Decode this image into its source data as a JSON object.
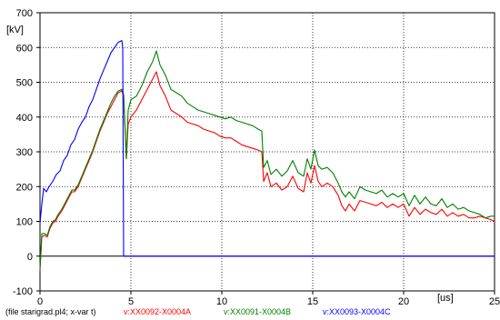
{
  "chart_data": {
    "type": "line",
    "ylabel": "[kV]",
    "xlabel": "[us]",
    "xlim": [
      0,
      25
    ],
    "ylim": [
      -100,
      700
    ],
    "x_ticks": [
      0,
      5,
      10,
      15,
      20,
      25
    ],
    "y_ticks": [
      -100,
      0,
      100,
      200,
      300,
      400,
      500,
      600,
      700
    ],
    "grid": true,
    "caption": "(file starigrad.pl4; x-var t)",
    "series": [
      {
        "name": "v:XX0092-X0004A",
        "color": "#ff0000",
        "x": [
          0,
          0.1,
          0.25,
          0.4,
          0.55,
          0.7,
          0.85,
          1.0,
          1.2,
          1.4,
          1.6,
          1.75,
          1.9,
          2.1,
          2.3,
          2.5,
          2.7,
          2.9,
          3.1,
          3.3,
          3.5,
          3.7,
          3.9,
          4.1,
          4.3,
          4.5,
          4.6,
          4.75,
          4.85,
          5.0,
          5.3,
          5.6,
          5.9,
          6.2,
          6.4,
          6.6,
          6.9,
          7.2,
          7.5,
          7.8,
          8.1,
          8.4,
          8.7,
          9.0,
          9.3,
          9.6,
          9.9,
          10.2,
          10.5,
          10.8,
          11.1,
          11.4,
          11.7,
          12.0,
          12.2,
          12.3,
          12.5,
          12.7,
          13.0,
          13.3,
          13.6,
          13.9,
          14.2,
          14.5,
          14.7,
          14.9,
          15.1,
          15.3,
          15.5,
          15.8,
          16.1,
          16.4,
          16.6,
          16.8,
          17.0,
          17.3,
          17.6,
          17.9,
          18.2,
          18.5,
          18.8,
          19.1,
          19.4,
          19.7,
          20.0,
          20.3,
          20.6,
          20.9,
          21.2,
          21.5,
          21.8,
          22.1,
          22.4,
          22.7,
          23.0,
          23.3,
          23.6,
          23.9,
          24.2,
          24.5,
          24.8,
          25.0
        ],
        "values": [
          -40,
          55,
          60,
          55,
          80,
          95,
          100,
          115,
          130,
          150,
          170,
          185,
          185,
          200,
          225,
          250,
          275,
          300,
          330,
          360,
          385,
          410,
          430,
          450,
          470,
          475,
          460,
          280,
          380,
          400,
          420,
          450,
          480,
          510,
          530,
          490,
          460,
          420,
          410,
          400,
          385,
          380,
          375,
          365,
          360,
          355,
          345,
          340,
          340,
          330,
          320,
          315,
          310,
          305,
          300,
          215,
          240,
          200,
          210,
          190,
          200,
          230,
          195,
          185,
          240,
          210,
          260,
          215,
          200,
          210,
          200,
          175,
          145,
          130,
          150,
          130,
          160,
          155,
          150,
          145,
          155,
          140,
          150,
          140,
          150,
          115,
          140,
          120,
          135,
          125,
          120,
          135,
          115,
          125,
          115,
          120,
          110,
          110,
          115,
          110,
          105,
          100
        ]
      },
      {
        "name": "v:XX0091-X0004B",
        "color": "#008000",
        "x": [
          0,
          0.1,
          0.25,
          0.4,
          0.55,
          0.7,
          0.85,
          1.0,
          1.2,
          1.4,
          1.6,
          1.75,
          1.9,
          2.1,
          2.3,
          2.5,
          2.7,
          2.9,
          3.1,
          3.3,
          3.5,
          3.7,
          3.9,
          4.1,
          4.3,
          4.5,
          4.6,
          4.75,
          4.85,
          5.0,
          5.3,
          5.6,
          5.9,
          6.2,
          6.4,
          6.6,
          6.9,
          7.2,
          7.5,
          7.8,
          8.1,
          8.4,
          8.7,
          9.0,
          9.3,
          9.6,
          9.9,
          10.2,
          10.5,
          10.8,
          11.1,
          11.4,
          11.7,
          12.0,
          12.2,
          12.3,
          12.5,
          12.7,
          13.0,
          13.3,
          13.6,
          13.9,
          14.2,
          14.5,
          14.7,
          14.9,
          15.1,
          15.3,
          15.5,
          15.8,
          16.1,
          16.4,
          16.6,
          16.8,
          17.0,
          17.3,
          17.6,
          17.9,
          18.2,
          18.5,
          18.8,
          19.1,
          19.4,
          19.7,
          20.0,
          20.3,
          20.6,
          20.9,
          21.2,
          21.5,
          21.8,
          22.1,
          22.4,
          22.7,
          23.0,
          23.3,
          23.6,
          23.9,
          24.2,
          24.5,
          24.8,
          25.0
        ],
        "values": [
          -35,
          65,
          65,
          60,
          85,
          100,
          105,
          120,
          135,
          155,
          175,
          190,
          190,
          205,
          230,
          255,
          280,
          305,
          335,
          365,
          390,
          415,
          440,
          460,
          475,
          480,
          465,
          280,
          420,
          450,
          460,
          490,
          530,
          560,
          590,
          550,
          520,
          480,
          470,
          460,
          440,
          430,
          420,
          415,
          410,
          405,
          400,
          395,
          400,
          390,
          385,
          380,
          375,
          365,
          360,
          255,
          275,
          235,
          250,
          230,
          245,
          275,
          240,
          230,
          280,
          250,
          305,
          260,
          250,
          255,
          240,
          210,
          185,
          170,
          185,
          165,
          200,
          190,
          185,
          180,
          190,
          170,
          180,
          170,
          180,
          145,
          175,
          150,
          170,
          150,
          145,
          165,
          140,
          150,
          135,
          140,
          130,
          125,
          120,
          110,
          115,
          115
        ]
      },
      {
        "name": "v:XX0093-X0004C",
        "color": "#0000ff",
        "x": [
          0,
          0.1,
          0.2,
          0.35,
          0.5,
          0.7,
          0.9,
          1.1,
          1.3,
          1.5,
          1.7,
          1.9,
          2.1,
          2.3,
          2.5,
          2.7,
          2.9,
          3.1,
          3.3,
          3.5,
          3.7,
          3.9,
          4.1,
          4.3,
          4.5,
          4.55,
          4.6,
          5.0,
          10,
          15,
          20,
          25
        ],
        "values": [
          95,
          150,
          195,
          185,
          200,
          215,
          235,
          245,
          275,
          290,
          320,
          335,
          365,
          385,
          400,
          430,
          450,
          480,
          510,
          535,
          560,
          585,
          600,
          615,
          620,
          600,
          0,
          0,
          0,
          0,
          0,
          0
        ]
      }
    ]
  }
}
